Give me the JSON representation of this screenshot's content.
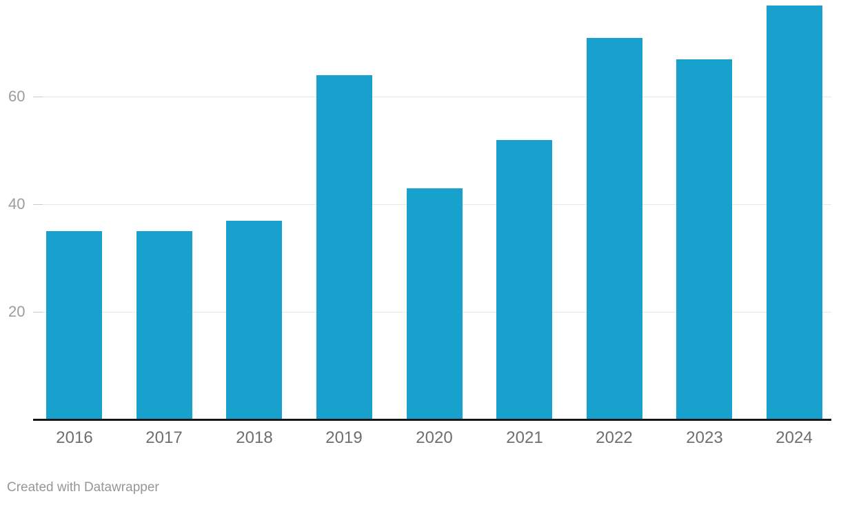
{
  "chart_data": {
    "type": "bar",
    "categories": [
      "2016",
      "2017",
      "2018",
      "2019",
      "2020",
      "2021",
      "2022",
      "2023",
      "2024"
    ],
    "values": [
      35,
      35,
      37,
      64,
      43,
      52,
      71,
      67,
      77
    ],
    "title": "",
    "xlabel": "",
    "ylabel": "",
    "ylim": [
      0,
      78
    ],
    "yticks": [
      20,
      40,
      60
    ],
    "grid": "horizontal-only",
    "legend": "none",
    "bar_color": "#18a1cd",
    "gridline_color": "#e8e8e8",
    "axis_line_color": "#151515",
    "x_label_color": "#6e6e6e",
    "y_label_color": "#9c9c9c"
  },
  "footer": {
    "attribution": "Created with Datawrapper"
  }
}
